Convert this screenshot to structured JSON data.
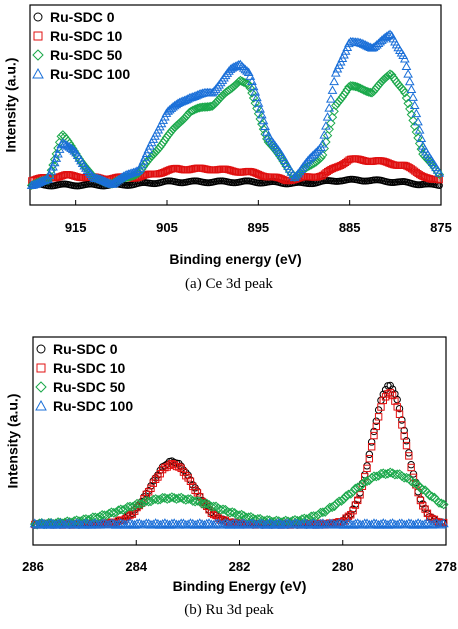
{
  "captions": {
    "a": "(a) Ce 3d peak",
    "b": "(b) Ru 3d peak"
  },
  "chart_data": [
    {
      "id": "a",
      "type": "scatter",
      "xlabel": "Binding energy (eV)",
      "ylabel": "Intensity (a.u.)",
      "xlim": [
        920,
        875
      ],
      "x_reversed": true,
      "x_ticks": [
        915,
        905,
        895,
        885,
        875
      ],
      "y_ticks_shown": false,
      "legend_position": "top-left",
      "series": [
        {
          "name": "Ru-SDC 0",
          "color": "#000000",
          "marker": "circle",
          "x": [
            920,
            916,
            910,
            905,
            900,
            896,
            890,
            886,
            883,
            880,
            876
          ],
          "y": [
            0.0,
            0.0,
            0.0,
            0.02,
            0.02,
            0.02,
            0.01,
            0.03,
            0.03,
            0.02,
            0.0
          ]
        },
        {
          "name": "Ru-SDC 10",
          "color": "#e01010",
          "marker": "square",
          "x": [
            920,
            916,
            912,
            908,
            904,
            900,
            896,
            892,
            888,
            885,
            882,
            879,
            876
          ],
          "y": [
            0.03,
            0.06,
            0.04,
            0.05,
            0.1,
            0.1,
            0.08,
            0.03,
            0.06,
            0.16,
            0.15,
            0.12,
            0.03
          ]
        },
        {
          "name": "Ru-SDC 50",
          "color": "#1aa84a",
          "marker": "diamond",
          "x": [
            920,
            918,
            916.5,
            915,
            913,
            911,
            908,
            905,
            902.5,
            900,
            898,
            897,
            896,
            894,
            891,
            888,
            886.5,
            885,
            882.5,
            880.5,
            879,
            877,
            875
          ],
          "y": [
            0.0,
            0.03,
            0.32,
            0.2,
            0.04,
            0.01,
            0.08,
            0.3,
            0.46,
            0.5,
            0.6,
            0.66,
            0.62,
            0.28,
            0.05,
            0.18,
            0.5,
            0.62,
            0.58,
            0.7,
            0.58,
            0.2,
            0.05
          ]
        },
        {
          "name": "Ru-SDC 100",
          "color": "#1a6fd8",
          "marker": "triangle",
          "x": [
            920,
            918,
            916.5,
            915,
            913,
            911,
            908,
            905,
            902.5,
            900,
            898,
            897,
            896,
            894,
            891,
            888,
            886.5,
            885,
            882.5,
            880.5,
            879,
            877,
            875
          ],
          "y": [
            0.0,
            0.03,
            0.27,
            0.2,
            0.04,
            0.01,
            0.1,
            0.46,
            0.55,
            0.58,
            0.72,
            0.76,
            0.7,
            0.32,
            0.05,
            0.25,
            0.7,
            0.9,
            0.86,
            0.94,
            0.8,
            0.25,
            0.05
          ]
        }
      ]
    },
    {
      "id": "b",
      "type": "scatter",
      "xlabel": "Binding Energy (eV)",
      "ylabel": "Intensity (a.u.)",
      "xlim": [
        286,
        278
      ],
      "x_reversed": true,
      "x_ticks": [
        286,
        284,
        282,
        280,
        278
      ],
      "y_ticks_shown": false,
      "legend_position": "top-left",
      "series": [
        {
          "name": "Ru-SDC 0",
          "color": "#000000",
          "marker": "circle",
          "peaks": [
            {
              "center": 283.3,
              "height": 0.43,
              "width": 0.42
            },
            {
              "center": 279.1,
              "height": 0.95,
              "width": 0.33
            }
          ]
        },
        {
          "name": "Ru-SDC 10",
          "color": "#e01010",
          "marker": "square",
          "peaks": [
            {
              "center": 283.3,
              "height": 0.41,
              "width": 0.42
            },
            {
              "center": 279.1,
              "height": 0.9,
              "width": 0.33
            }
          ]
        },
        {
          "name": "Ru-SDC 50",
          "color": "#1aa84a",
          "marker": "diamond",
          "peaks": [
            {
              "center": 283.3,
              "height": 0.18,
              "width": 0.9
            },
            {
              "center": 279.1,
              "height": 0.35,
              "width": 0.75
            }
          ]
        },
        {
          "name": "Ru-SDC 100",
          "color": "#1a6fd8",
          "marker": "triangle",
          "peaks": []
        }
      ]
    }
  ]
}
